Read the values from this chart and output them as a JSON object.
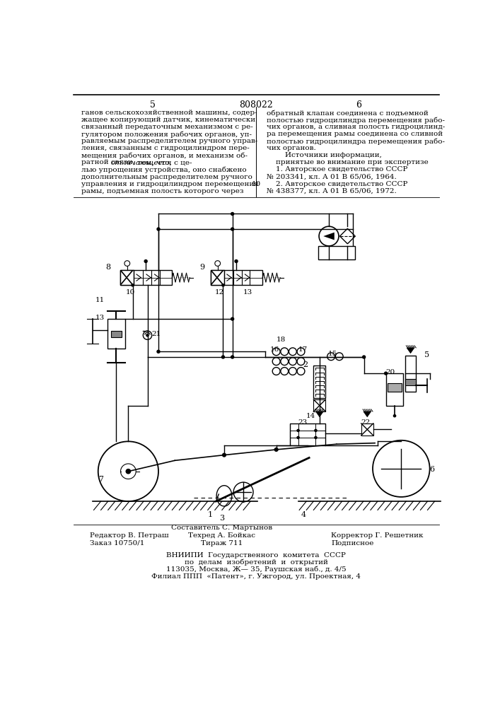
{
  "page_num_left": "5",
  "page_num_center": "808022",
  "page_num_right": "6",
  "col_left_lines": [
    [
      0,
      "ганов сельскохозяйственной машины, содер-"
    ],
    [
      0,
      "жащее копирующий датчик, кинематически"
    ],
    [
      0,
      "связанный передаточным механизмом с ре-"
    ],
    [
      0,
      "гулятором положения рабочих органов, уп-"
    ],
    [
      0,
      "равляемым распределителем ручного управ-"
    ],
    [
      0,
      "ления, связанным с гидроцилиндром пере-"
    ],
    [
      0,
      "мещения рабочих органов, и механизм об-"
    ],
    [
      1,
      "ратной связи, ",
      "отличающееся",
      " тем, что, с це-"
    ],
    [
      0,
      "лью упрощения устройства, оно снабжено"
    ],
    [
      0,
      "дополнительным распределителем ручного"
    ],
    [
      0,
      "управления и гидроцилиндром перемещения"
    ],
    [
      0,
      "рамы, подъемная полость которого через"
    ]
  ],
  "col_right_lines": [
    "обратный клапан соединена с подъемной",
    "полостью гидроцилиндра перемещения рабо-",
    "чих органов, а сливная полость гидроцилинд-",
    "ра перемещения рамы соединена со сливной",
    "полостью гидроцилиндра перемещения рабо-",
    "чих органов.",
    "        Источники информации,",
    "    принятые во внимание при экспертизе",
    "    1. Авторское свидетельство СССР",
    "№ 203341, кл. А 01 В 65/06, 1964.",
    "    2. Авторское свидетельство СССР",
    "№ 438377, кл. А 01 В 65/06, 1972."
  ],
  "line10_row": 11,
  "bottom_editor": "Редактор В. Петраш",
  "bottom_order": "Заказ 10750/1",
  "bottom_composer": "Составитель С. Мартынов",
  "bottom_techred": "Техред А. Бойкас",
  "bottom_tirazh": "Тираж 711",
  "bottom_corrector": "Корректор Г. Решетник",
  "bottom_podpisnoe": "Подписное",
  "vnipi_line1": "ВНИИПИ  Государственного  комитета  СССР",
  "vnipi_line2": "по  делам  изобретений  и  открытий",
  "vnipi_line3": "113035, Москва, Ж— 35, Раушская наб., д. 4/5",
  "vnipi_line4": "Филиал ППП  «Патент», г. Ужгород, ул. Проектная, 4"
}
